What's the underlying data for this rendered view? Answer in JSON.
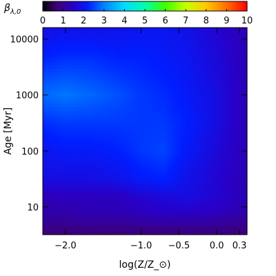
{
  "chart_data": {
    "type": "heatmap",
    "title": "",
    "xlabel": "log(Z/Z_⊙)",
    "ylabel": "Age [Myr]",
    "xscale": "linear",
    "yscale": "log",
    "xlim": [
      -2.3,
      0.4
    ],
    "ylim": [
      3.2,
      16000
    ],
    "x_ticks": [
      {
        "value": -2.0,
        "label": "−2.0"
      },
      {
        "value": -1.0,
        "label": "−1.0"
      },
      {
        "value": -0.5,
        "label": "−0.5"
      },
      {
        "value": 0.0,
        "label": "0.0"
      },
      {
        "value": 0.3,
        "label": "0.3"
      }
    ],
    "y_ticks": [
      {
        "value": 10,
        "label": "10"
      },
      {
        "value": 100,
        "label": "100"
      },
      {
        "value": 1000,
        "label": "1000"
      },
      {
        "value": 10000,
        "label": "10000"
      }
    ],
    "colorbar": {
      "label_symbol": "β",
      "label_subscript": "λ,0",
      "range": [
        0,
        10
      ],
      "colormap": "rainbow",
      "ticks": [
        0,
        1,
        2,
        3,
        4,
        5,
        6,
        7,
        8,
        9,
        10
      ]
    },
    "cells": [
      {
        "age": 16000,
        "values": [
          1.8,
          1.9,
          1.9,
          1.9,
          2.0,
          2.0,
          1.9,
          1.6,
          1.3
        ]
      },
      {
        "age": 5000,
        "values": [
          2.2,
          2.3,
          2.3,
          2.2,
          2.2,
          2.1,
          2.0,
          1.7,
          1.3
        ]
      },
      {
        "age": 1000,
        "values": [
          2.8,
          2.9,
          2.8,
          2.6,
          2.4,
          2.3,
          2.1,
          1.8,
          1.3
        ]
      },
      {
        "age": 300,
        "values": [
          2.3,
          2.4,
          2.4,
          2.4,
          2.4,
          2.4,
          2.2,
          1.8,
          1.3
        ]
      },
      {
        "age": 100,
        "values": [
          2.0,
          2.1,
          2.1,
          2.2,
          2.4,
          2.5,
          2.1,
          1.7,
          1.3
        ]
      },
      {
        "age": 30,
        "values": [
          1.8,
          1.8,
          1.8,
          1.9,
          2.1,
          2.2,
          1.9,
          1.6,
          1.3
        ]
      },
      {
        "age": 15,
        "values": [
          1.3,
          1.4,
          1.4,
          1.4,
          1.6,
          1.7,
          1.8,
          1.6,
          1.3
        ]
      },
      {
        "age": 8,
        "values": [
          1.2,
          1.2,
          1.3,
          1.3,
          1.4,
          1.5,
          1.5,
          1.4,
          1.2
        ]
      },
      {
        "age": 3.2,
        "values": [
          0.7,
          0.7,
          0.7,
          0.7,
          0.7,
          0.7,
          0.7,
          0.7,
          0.7
        ]
      }
    ],
    "cell_x": [
      -2.3,
      -2.0,
      -1.7,
      -1.3,
      -1.0,
      -0.7,
      -0.4,
      0.0,
      0.4
    ]
  }
}
